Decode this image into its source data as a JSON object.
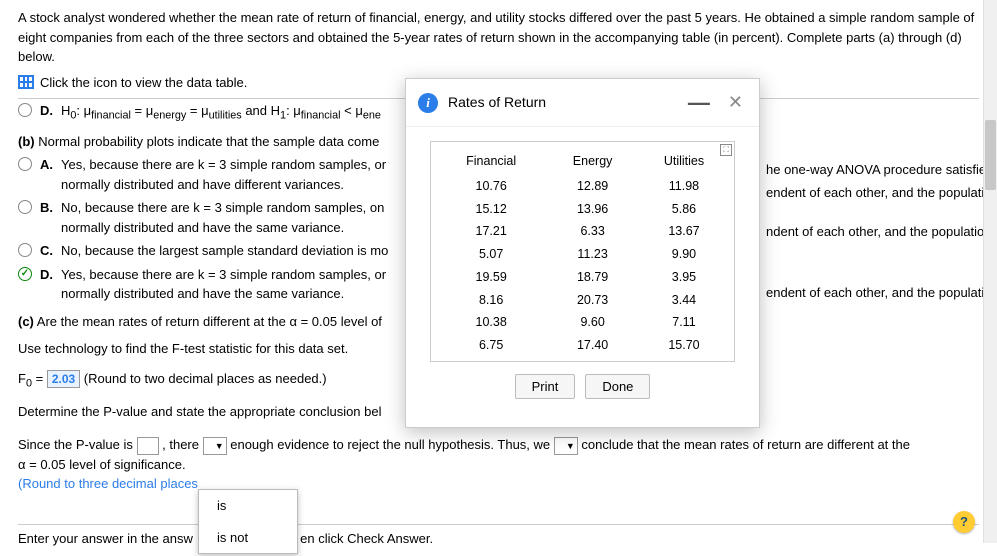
{
  "prompt": "A stock analyst wondered whether the mean rate of return of financial, energy, and utility stocks differed over the past 5 years. He obtained a simple random sample of eight companies from each of the three sectors and obtained the 5-year rates of return shown in the accompanying table (in percent). Complete parts (a) through (d) below.",
  "table_link": "Click the icon to view the data table.",
  "optD_cut": {
    "letter": "D.",
    "prefix": "H",
    "sub0": "0",
    "mid": ": μ",
    "f": "financial",
    "eq": " = μ",
    "e": "energy",
    "u": "utilities",
    "and": " and H",
    "sub1": "1",
    "end": ": μ",
    "lt": " < μ",
    "ene": "ene"
  },
  "partB": {
    "label": "(b)",
    "text": "Normal probability plots indicate that the sample data come "
  },
  "b_right": "he one-way ANOVA procedure satisfied?",
  "optsB": {
    "A": {
      "letter": "A.",
      "text": "Yes, because there are k = 3 simple random samples, or",
      "line2": "normally distributed and have different variances.",
      "right": "endent of each other, and the populations are"
    },
    "B": {
      "letter": "B.",
      "text": "No, because there are k = 3 simple random samples, on",
      "line2": "normally distributed and have the same variance.",
      "right": "ndent of each other, and the populations are"
    },
    "C": {
      "letter": "C.",
      "text": "No, because the largest sample standard deviation is mo"
    },
    "D": {
      "letter": "D.",
      "text": "Yes, because there are k = 3 simple random samples, or",
      "line2": "normally distributed and have the same variance.",
      "right": "endent of each other, and the populations are"
    }
  },
  "partC": {
    "label": "(c)",
    "text": "Are the mean rates of return different at the α = 0.05 level of"
  },
  "tech_line": "Use technology to find the F-test statistic for this data set.",
  "F0": {
    "prefix": "F",
    "sub": "0",
    "eq": " = ",
    "val": "2.03",
    "paren": " (Round to two decimal places as needed.)"
  },
  "pval_line": "Determine the P-value and state the appropriate conclusion bel",
  "since": {
    "a": "Since the P-value is ",
    "b": ", there ",
    "c": " enough evidence to reject the null hypothesis. Thus, we ",
    "d": " conclude that the mean rates of return are different at the"
  },
  "alpha_line": "α = 0.05 level of significance.",
  "round3": "(Round to three decimal places",
  "enter_line_a": "Enter your answer in the answ",
  "enter_line_b": "en click Check Answer.",
  "dropdown": {
    "opt1": "is",
    "opt2": "is not"
  },
  "modal": {
    "title": "Rates of Return",
    "info": "i",
    "columns": [
      "Financial",
      "Energy",
      "Utilities"
    ],
    "rows": [
      [
        "10.76",
        "12.89",
        "11.98"
      ],
      [
        "15.12",
        "13.96",
        "5.86"
      ],
      [
        "17.21",
        "6.33",
        "13.67"
      ],
      [
        "5.07",
        "11.23",
        "9.90"
      ],
      [
        "19.59",
        "18.79",
        "3.95"
      ],
      [
        "8.16",
        "20.73",
        "3.44"
      ],
      [
        "10.38",
        "9.60",
        "7.11"
      ],
      [
        "6.75",
        "17.40",
        "15.70"
      ]
    ],
    "print": "Print",
    "done": "Done"
  },
  "colors": {
    "link": "#2b7de9"
  }
}
